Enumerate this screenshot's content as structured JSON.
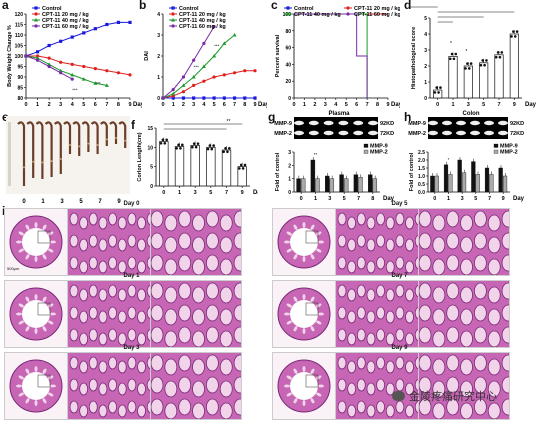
{
  "panels": {
    "a": {
      "label": "a",
      "ylabel": "Body Weight Change %",
      "xlabel": "Day",
      "legend": [
        "Control",
        "CPT-11 20 mg / kg",
        "CPT-11 40 mg / kg",
        "CPT-11 60 mg / kg"
      ],
      "yticks": [
        "80",
        "85",
        "90",
        "95",
        "100",
        "105",
        "110",
        "115",
        "120"
      ],
      "xticks": [
        "0",
        "1",
        "2",
        "3",
        "4",
        "5",
        "6",
        "7",
        "8",
        "9"
      ]
    },
    "b": {
      "label": "b",
      "ylabel": "DAI",
      "xlabel": "Day",
      "legend": [
        "Control",
        "CPT-11 20 mg / kg",
        "CPT-11 40 mg / kg",
        "CPT-11 60 mg / kg"
      ],
      "yticks": [
        "0",
        "1",
        "2",
        "3",
        "4"
      ],
      "xticks": [
        "0",
        "1",
        "2",
        "3",
        "4",
        "5",
        "6",
        "7",
        "8",
        "9"
      ]
    },
    "c": {
      "label": "c",
      "ylabel": "Percent survival",
      "xlabel": "Day",
      "legend": [
        "Control",
        "CPT-11 20 mg / kg",
        "CPT-11 40 mg / kg",
        "CPT-11 60 mg / kg"
      ],
      "yticks": [
        "0",
        "20",
        "40",
        "60",
        "80",
        "100"
      ],
      "xticks": [
        "0",
        "1",
        "2",
        "3",
        "4",
        "5",
        "6",
        "7",
        "8",
        "9"
      ]
    },
    "d": {
      "label": "d",
      "ylabel": "Histopathological score",
      "xlabel": "Day",
      "yticks": [
        "0",
        "1",
        "2",
        "3",
        "4",
        "5"
      ],
      "xticks": [
        "0",
        "1",
        "3",
        "5",
        "7",
        "9"
      ]
    },
    "e": {
      "label": "e",
      "xticks": [
        "0",
        "1",
        "3",
        "5",
        "7",
        "9"
      ]
    },
    "f": {
      "label": "f",
      "ylabel": "Corlon Length(cm)",
      "xlabel": "Day",
      "yticks": [
        "0",
        "5",
        "10",
        "15"
      ],
      "xticks": [
        "0",
        "1",
        "3",
        "5",
        "7",
        "9"
      ]
    },
    "g": {
      "label": "g",
      "title": "Plasma",
      "bands": [
        "MMP-9",
        "MMP-2"
      ],
      "kd": [
        "92KD",
        "72KD"
      ],
      "ylabel": "Fold of control",
      "xlabel": "Day",
      "legend": [
        "MMP-9",
        "MMP-2"
      ],
      "yticks": [
        "0",
        "1",
        "2",
        "3"
      ],
      "xticks": [
        "0",
        "1",
        "3",
        "5",
        "7",
        "8"
      ]
    },
    "h": {
      "label": "h",
      "title": "Colon",
      "bands": [
        "MMP-9",
        "MMP-2"
      ],
      "kd": [
        "92KD",
        "72KD"
      ],
      "ylabel": "Fold of control",
      "xlabel": "Day",
      "legend": [
        "MMP-9",
        "MMP-2"
      ],
      "yticks": [
        "0.0",
        "0.5",
        "1.0",
        "1.5",
        "2.0",
        "2.5"
      ],
      "xticks": [
        "0",
        "1",
        "3",
        "5",
        "7",
        "9"
      ]
    },
    "i": {
      "label": "i",
      "days": [
        "Day 0",
        "Day 1",
        "Day 3",
        "Day 5",
        "Day 7",
        "Day 9"
      ],
      "scale": "500μm"
    }
  },
  "stars": {
    "a": "***",
    "b": "***",
    "d": "*",
    "f": "**",
    "g": "**",
    "h": "*"
  },
  "colors": {
    "control": "#1a1adc",
    "d20": "#e0201e",
    "d40": "#1a9a2a",
    "d60": "#7a2aa8",
    "tissue": "#c766b4",
    "tissue_light": "#f1d3ea",
    "tissue_dark": "#7a2a78"
  },
  "chart_data": [
    {
      "type": "line",
      "panel": "a",
      "x": [
        0,
        1,
        2,
        3,
        4,
        5,
        6,
        7,
        8,
        9
      ],
      "series": [
        {
          "name": "Control",
          "values": [
            100,
            102,
            105,
            107,
            109,
            111,
            113,
            115,
            116,
            116
          ]
        },
        {
          "name": "CPT-11 20 mg / kg",
          "values": [
            100,
            100,
            99,
            97,
            96,
            95,
            94,
            93,
            92,
            91
          ]
        },
        {
          "name": "CPT-11 40 mg / kg",
          "values": [
            100,
            99,
            96,
            93,
            91,
            89,
            87,
            86,
            null,
            null
          ]
        },
        {
          "name": "CPT-11 60 mg / kg",
          "values": [
            100,
            98,
            95,
            92,
            89,
            null,
            null,
            null,
            null,
            null
          ]
        }
      ],
      "ylim": [
        80,
        120
      ]
    },
    {
      "type": "line",
      "panel": "b",
      "x": [
        0,
        1,
        2,
        3,
        4,
        5,
        6,
        7,
        8,
        9
      ],
      "series": [
        {
          "name": "Control",
          "values": [
            0,
            0,
            0,
            0,
            0,
            0,
            0,
            0,
            0,
            0
          ]
        },
        {
          "name": "CPT-11 20 mg / kg",
          "values": [
            0,
            0.1,
            0.3,
            0.6,
            0.8,
            1.0,
            1.1,
            1.2,
            1.3,
            1.3
          ]
        },
        {
          "name": "CPT-11 40 mg / kg",
          "values": [
            0,
            0.2,
            0.6,
            1.0,
            1.5,
            2.0,
            2.6,
            3.0,
            null,
            null
          ]
        },
        {
          "name": "CPT-11 60 mg / kg",
          "values": [
            0,
            0.4,
            1.0,
            1.8,
            2.6,
            3.4,
            null,
            null,
            null,
            null
          ]
        }
      ],
      "ylim": [
        0,
        4
      ]
    },
    {
      "type": "line",
      "panel": "c",
      "x": [
        0,
        1,
        2,
        3,
        4,
        5,
        6,
        7,
        8,
        9
      ],
      "series": [
        {
          "name": "Control",
          "values": [
            100,
            100,
            100,
            100,
            100,
            100,
            100,
            100,
            100,
            100
          ]
        },
        {
          "name": "CPT-11 20 mg / kg",
          "values": [
            100,
            100,
            100,
            100,
            100,
            100,
            100,
            100,
            100,
            100
          ]
        },
        {
          "name": "CPT-11 40 mg / kg",
          "values": [
            100,
            100,
            100,
            100,
            100,
            100,
            100,
            0,
            null,
            null
          ]
        },
        {
          "name": "CPT-11 60 mg / kg",
          "values": [
            100,
            100,
            100,
            100,
            100,
            100,
            50,
            0,
            null,
            null
          ]
        }
      ],
      "ylim": [
        0,
        100
      ]
    },
    {
      "type": "bar",
      "panel": "d",
      "categories": [
        "0",
        "1",
        "3",
        "5",
        "7",
        "9"
      ],
      "values": [
        0.5,
        2.6,
        2.0,
        2.2,
        2.7,
        4.0
      ],
      "ylim": [
        0,
        5
      ]
    },
    {
      "type": "bar",
      "panel": "f",
      "categories": [
        "0",
        "1",
        "3",
        "5",
        "7",
        "9"
      ],
      "values": [
        11.5,
        10.2,
        10.5,
        10.0,
        9.3,
        5.0
      ],
      "ylim": [
        0,
        15
      ]
    },
    {
      "type": "bar",
      "panel": "g",
      "categories": [
        "0",
        "1",
        "3",
        "5",
        "7",
        "8"
      ],
      "series": [
        {
          "name": "MMP-9",
          "values": [
            1.0,
            2.4,
            1.2,
            1.3,
            1.3,
            1.3
          ]
        },
        {
          "name": "MMP-2",
          "values": [
            1.0,
            1.0,
            1.0,
            1.0,
            1.1,
            1.0
          ]
        }
      ],
      "ylim": [
        0,
        3
      ]
    },
    {
      "type": "bar",
      "panel": "h",
      "categories": [
        "0",
        "1",
        "3",
        "5",
        "7",
        "9"
      ],
      "series": [
        {
          "name": "MMP-9",
          "values": [
            1.0,
            1.7,
            2.0,
            1.9,
            1.5,
            1.5
          ]
        },
        {
          "name": "MMP-2",
          "values": [
            1.0,
            1.1,
            1.2,
            1.1,
            1.1,
            1.0
          ]
        }
      ],
      "ylim": [
        0,
        2.5
      ]
    }
  ],
  "watermark": "金陵疼痛研究中心"
}
